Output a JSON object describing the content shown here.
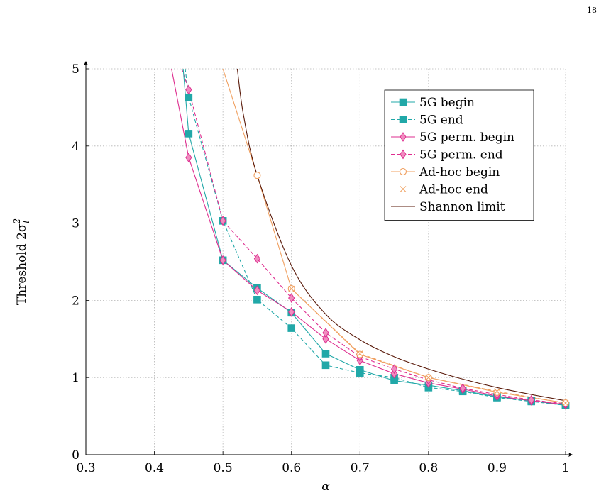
{
  "page_number": "18",
  "colors": {
    "teal": "#21a8a8",
    "magenta": "#de2d8f",
    "orange": "#f0a060",
    "brown": "#5a1a0a",
    "grid": "#b4b4b4"
  },
  "chart_data": {
    "type": "line",
    "xlabel": "α",
    "ylabel": "Threshold 2σ",
    "ylabel_sup": "2",
    "ylabel_sub": "l",
    "xlim": [
      0.3,
      1.0
    ],
    "ylim": [
      0,
      5
    ],
    "xticks": [
      0.3,
      0.4,
      0.5,
      0.6,
      0.7,
      0.8,
      0.9,
      1.0
    ],
    "xtick_labels": [
      "0.3",
      "0.4",
      "0.5",
      "0.6",
      "0.7",
      "0.8",
      "0.9",
      "1"
    ],
    "yticks": [
      0,
      1,
      2,
      3,
      4,
      5
    ],
    "ytick_labels": [
      "0",
      "1",
      "2",
      "3",
      "4",
      "5"
    ],
    "grid": true,
    "legend_position": "top-right",
    "series": [
      {
        "name": "5G begin",
        "style": "solid",
        "marker": "square",
        "color": "#21a8a8",
        "x": [
          0.45,
          0.5,
          0.55,
          0.6,
          0.65,
          0.7,
          0.75,
          0.8,
          0.85,
          0.9,
          0.95,
          1.0
        ],
        "y": [
          4.16,
          2.52,
          2.16,
          1.84,
          1.31,
          1.1,
          0.96,
          0.9,
          0.83,
          0.75,
          0.7,
          0.64
        ]
      },
      {
        "name": "5G end",
        "style": "dashed",
        "marker": "square",
        "color": "#21a8a8",
        "x": [
          0.45,
          0.5,
          0.55,
          0.6,
          0.65,
          0.7,
          0.75,
          0.8,
          0.85,
          0.9,
          0.95,
          1.0
        ],
        "y": [
          4.63,
          3.03,
          2.01,
          1.64,
          1.16,
          1.06,
          1.0,
          0.87,
          0.82,
          0.74,
          0.69,
          0.64
        ]
      },
      {
        "name": "5G perm. begin",
        "style": "solid",
        "marker": "diamond",
        "color": "#de2d8f",
        "x": [
          0.45,
          0.5,
          0.55,
          0.6,
          0.65,
          0.7,
          0.75,
          0.8,
          0.85,
          0.9,
          0.95,
          1.0
        ],
        "y": [
          3.85,
          2.52,
          2.13,
          1.85,
          1.5,
          1.22,
          1.05,
          0.93,
          0.85,
          0.76,
          0.7,
          0.65
        ]
      },
      {
        "name": "5G perm. end",
        "style": "dashed",
        "marker": "diamond",
        "color": "#de2d8f",
        "x": [
          0.44,
          0.45,
          0.5,
          0.55,
          0.6,
          0.65,
          0.7,
          0.75,
          0.8,
          0.85,
          0.9,
          0.95,
          1.0
        ],
        "y": [
          5.0,
          4.73,
          3.03,
          2.54,
          2.03,
          1.58,
          1.27,
          1.11,
          0.97,
          0.86,
          0.78,
          0.71,
          0.66
        ]
      },
      {
        "name": "Ad-hoc begin",
        "style": "solid",
        "marker": "circle",
        "color": "#f0a060",
        "x": [
          0.5,
          0.55,
          0.6,
          0.7,
          0.8,
          0.9,
          1.0
        ],
        "y": [
          5.0,
          3.62,
          2.15,
          1.3,
          1.0,
          0.81,
          0.67
        ]
      },
      {
        "name": "Ad-hoc end",
        "style": "dashed",
        "marker": "cross",
        "color": "#f0a060",
        "x": [
          0.6,
          0.7,
          0.8,
          0.9,
          1.0
        ],
        "y": [
          2.15,
          1.31,
          1.0,
          0.82,
          0.67
        ]
      },
      {
        "name": "Shannon limit",
        "style": "solid",
        "marker": "none",
        "color": "#5a1a0a",
        "x": [
          0.521,
          0.53,
          0.55,
          0.6,
          0.65,
          0.7,
          0.75,
          0.8,
          0.85,
          0.9,
          0.95,
          1.0
        ],
        "y": [
          5.0,
          4.4,
          3.62,
          2.45,
          1.82,
          1.49,
          1.27,
          1.11,
          0.98,
          0.87,
          0.78,
          0.7
        ]
      }
    ]
  }
}
